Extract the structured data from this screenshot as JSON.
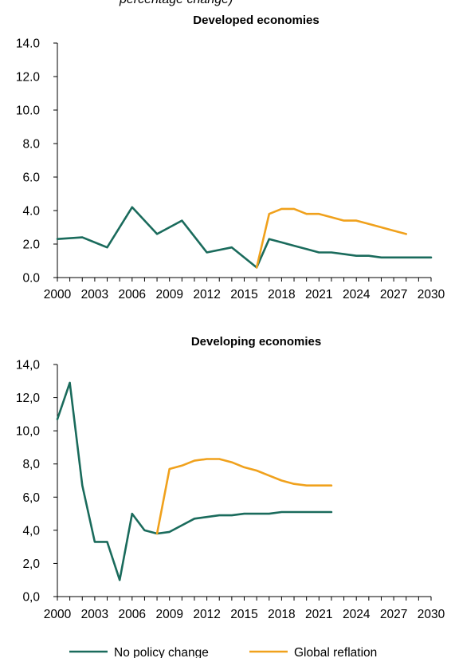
{
  "header": {
    "partial_title": "percentage change)"
  },
  "legend": {
    "items": [
      {
        "label": "No policy change",
        "color": "#1a6b5c"
      },
      {
        "label": "Global reflation",
        "color": "#f0a11c"
      }
    ]
  },
  "chart_data": [
    {
      "type": "line",
      "title": "Developed economies",
      "xlabel": "",
      "ylabel": "",
      "x": [
        2000,
        2001,
        2002,
        2003,
        2004,
        2005,
        2006,
        2007,
        2008,
        2009,
        2010,
        2011,
        2012,
        2013,
        2014,
        2015,
        2016,
        2017,
        2018,
        2019,
        2020,
        2021,
        2022,
        2023,
        2024,
        2025,
        2026,
        2027,
        2028,
        2029,
        2030
      ],
      "x_tick_labels": [
        "2000",
        "2003",
        "2006",
        "2009",
        "2012",
        "2015",
        "2018",
        "2021",
        "2024",
        "2027",
        "2030"
      ],
      "y_tick_labels": [
        "0.0",
        "2.0",
        "4.0",
        "6.0",
        "8.0",
        "10.0",
        "12.0",
        "14.0"
      ],
      "ylim": [
        0,
        14
      ],
      "grid": false,
      "legend_placement": "bottom",
      "series": [
        {
          "name": "No policy change",
          "color": "#1a6b5c",
          "values": [
            2.3,
            2.4,
            1.8,
            4.2,
            2.6,
            3.4,
            1.5,
            1.8,
            0.6,
            2.3,
            2.1,
            1.9,
            1.7,
            1.5,
            1.5,
            1.4,
            1.3,
            1.3,
            1.2,
            1.2,
            1.2
          ],
          "x": [
            2000,
            2002,
            2004,
            2006,
            2008,
            2010,
            2012,
            2014,
            2016,
            2017,
            2018,
            2019,
            2020,
            2021,
            2022,
            2023,
            2024,
            2025,
            2026,
            2028,
            2030
          ]
        },
        {
          "name": "Global reflation",
          "color": "#f0a11c",
          "values": [
            0.6,
            3.8,
            4.1,
            4.1,
            3.8,
            3.8,
            3.6,
            3.4,
            3.4,
            3.2,
            3.0,
            2.8,
            2.6
          ],
          "x": [
            2016,
            2017,
            2018,
            2019,
            2020,
            2021,
            2022,
            2023,
            2024,
            2025,
            2026,
            2027,
            2028
          ]
        }
      ]
    },
    {
      "type": "line",
      "title": "Developing economies",
      "xlabel": "",
      "ylabel": "",
      "x_tick_labels": [
        "2000",
        "2003",
        "2006",
        "2009",
        "2012",
        "2015",
        "2018",
        "2021",
        "2024",
        "2027",
        "2030"
      ],
      "y_tick_labels": [
        "0,0",
        "2,0",
        "4,0",
        "6,0",
        "8,0",
        "10,0",
        "12,0",
        "14,0"
      ],
      "ylim": [
        0,
        14
      ],
      "grid": false,
      "legend_placement": "bottom",
      "series": [
        {
          "name": "No policy change",
          "color": "#1a6b5c",
          "x": [
            2000,
            2001,
            2002,
            2003,
            2004,
            2005,
            2006,
            2007,
            2008,
            2009,
            2010,
            2011,
            2012,
            2013,
            2014,
            2015,
            2016,
            2017,
            2018,
            2019,
            2020,
            2021,
            2022
          ],
          "values": [
            10.7,
            12.9,
            6.7,
            3.3,
            3.3,
            1.0,
            5.0,
            4.0,
            3.8,
            3.9,
            4.3,
            4.7,
            4.8,
            4.9,
            4.9,
            5.0,
            5.0,
            5.0,
            5.1,
            5.1,
            5.1,
            5.1,
            5.1
          ]
        },
        {
          "name": "Global reflation",
          "color": "#f0a11c",
          "x": [
            2008,
            2009,
            2010,
            2011,
            2012,
            2013,
            2014,
            2015,
            2016,
            2017,
            2018,
            2019,
            2020,
            2021,
            2022
          ],
          "values": [
            3.8,
            7.7,
            7.9,
            8.2,
            8.3,
            8.3,
            8.1,
            7.8,
            7.6,
            7.3,
            7.0,
            6.8,
            6.7,
            6.7,
            6.7
          ]
        }
      ]
    }
  ]
}
